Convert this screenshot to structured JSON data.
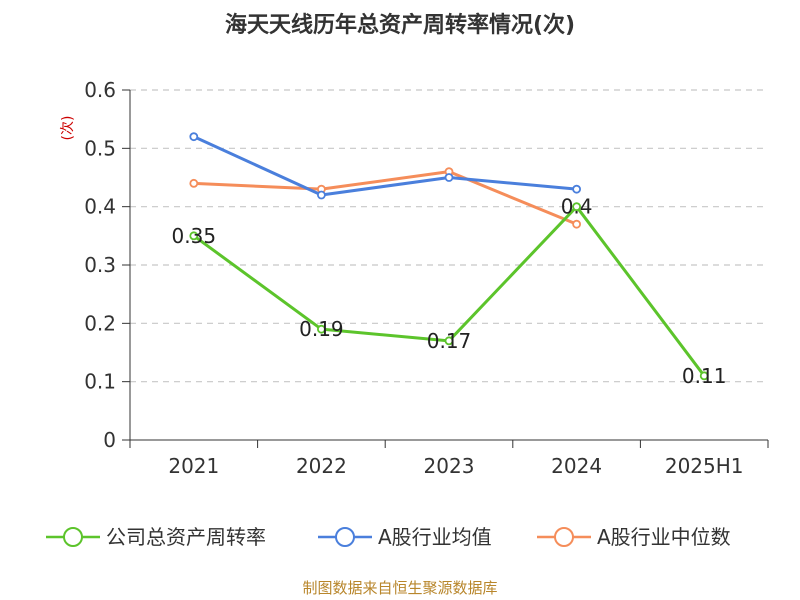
{
  "chart_data": {
    "type": "line",
    "title": "海天天线历年总资产周转率情况(次)",
    "ylabel": "(次)",
    "xlabel": "",
    "categories": [
      "2021",
      "2022",
      "2023",
      "2024",
      "2025H1"
    ],
    "ylim": [
      0,
      0.6
    ],
    "yticks": [
      0,
      0.1,
      0.2,
      0.3,
      0.4,
      0.5,
      0.6
    ],
    "ytick_labels": [
      "0",
      "0.1",
      "0.2",
      "0.3",
      "0.4",
      "0.5",
      "0.6"
    ],
    "grid": true,
    "legend_position": "bottom",
    "series": [
      {
        "name": "公司总资产周转率",
        "color": "#5cc42b",
        "values": [
          0.35,
          0.19,
          0.17,
          0.4,
          0.11
        ],
        "labels": [
          "0.35",
          "0.19",
          "0.17",
          "0.4",
          "0.11"
        ],
        "show_labels": true
      },
      {
        "name": "A股行业均值",
        "color": "#4a7fdc",
        "values": [
          0.52,
          0.42,
          0.45,
          0.43,
          null
        ],
        "show_labels": false
      },
      {
        "name": "A股行业中位数",
        "color": "#f58d5a",
        "values": [
          0.44,
          0.43,
          0.46,
          0.37,
          null
        ],
        "show_labels": false
      }
    ],
    "source": "制图数据来自恒生聚源数据库"
  }
}
